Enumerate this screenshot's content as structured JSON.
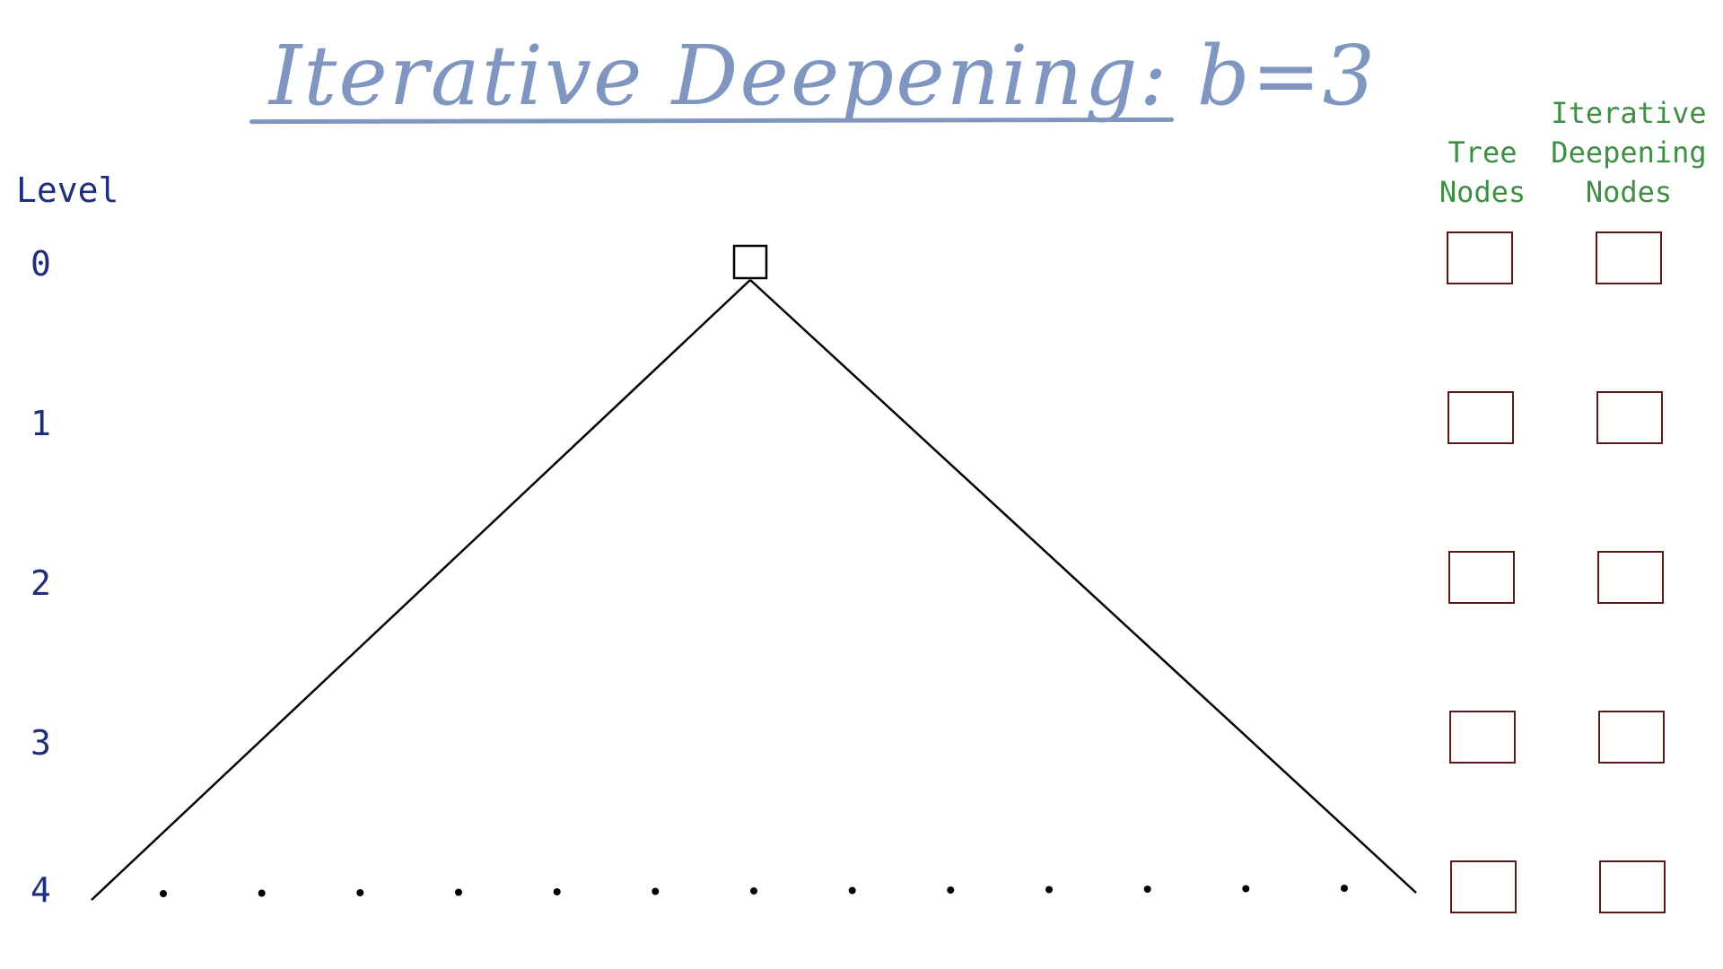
{
  "title": "Iterative Deepening: b=3",
  "level_header": "Level",
  "levels": [
    "0",
    "1",
    "2",
    "3",
    "4"
  ],
  "columns": {
    "tree_nodes": [
      "Tree",
      "Nodes"
    ],
    "id_nodes": [
      "Iterative",
      "Deepening",
      "Nodes"
    ]
  },
  "colors": {
    "title": "#7f97c0",
    "level_text": "#1d2f7a",
    "column_header": "#3e8e44",
    "box_border": "#5a1a1a",
    "tree_lines": "#000000"
  },
  "leaf_dot_count": 13
}
